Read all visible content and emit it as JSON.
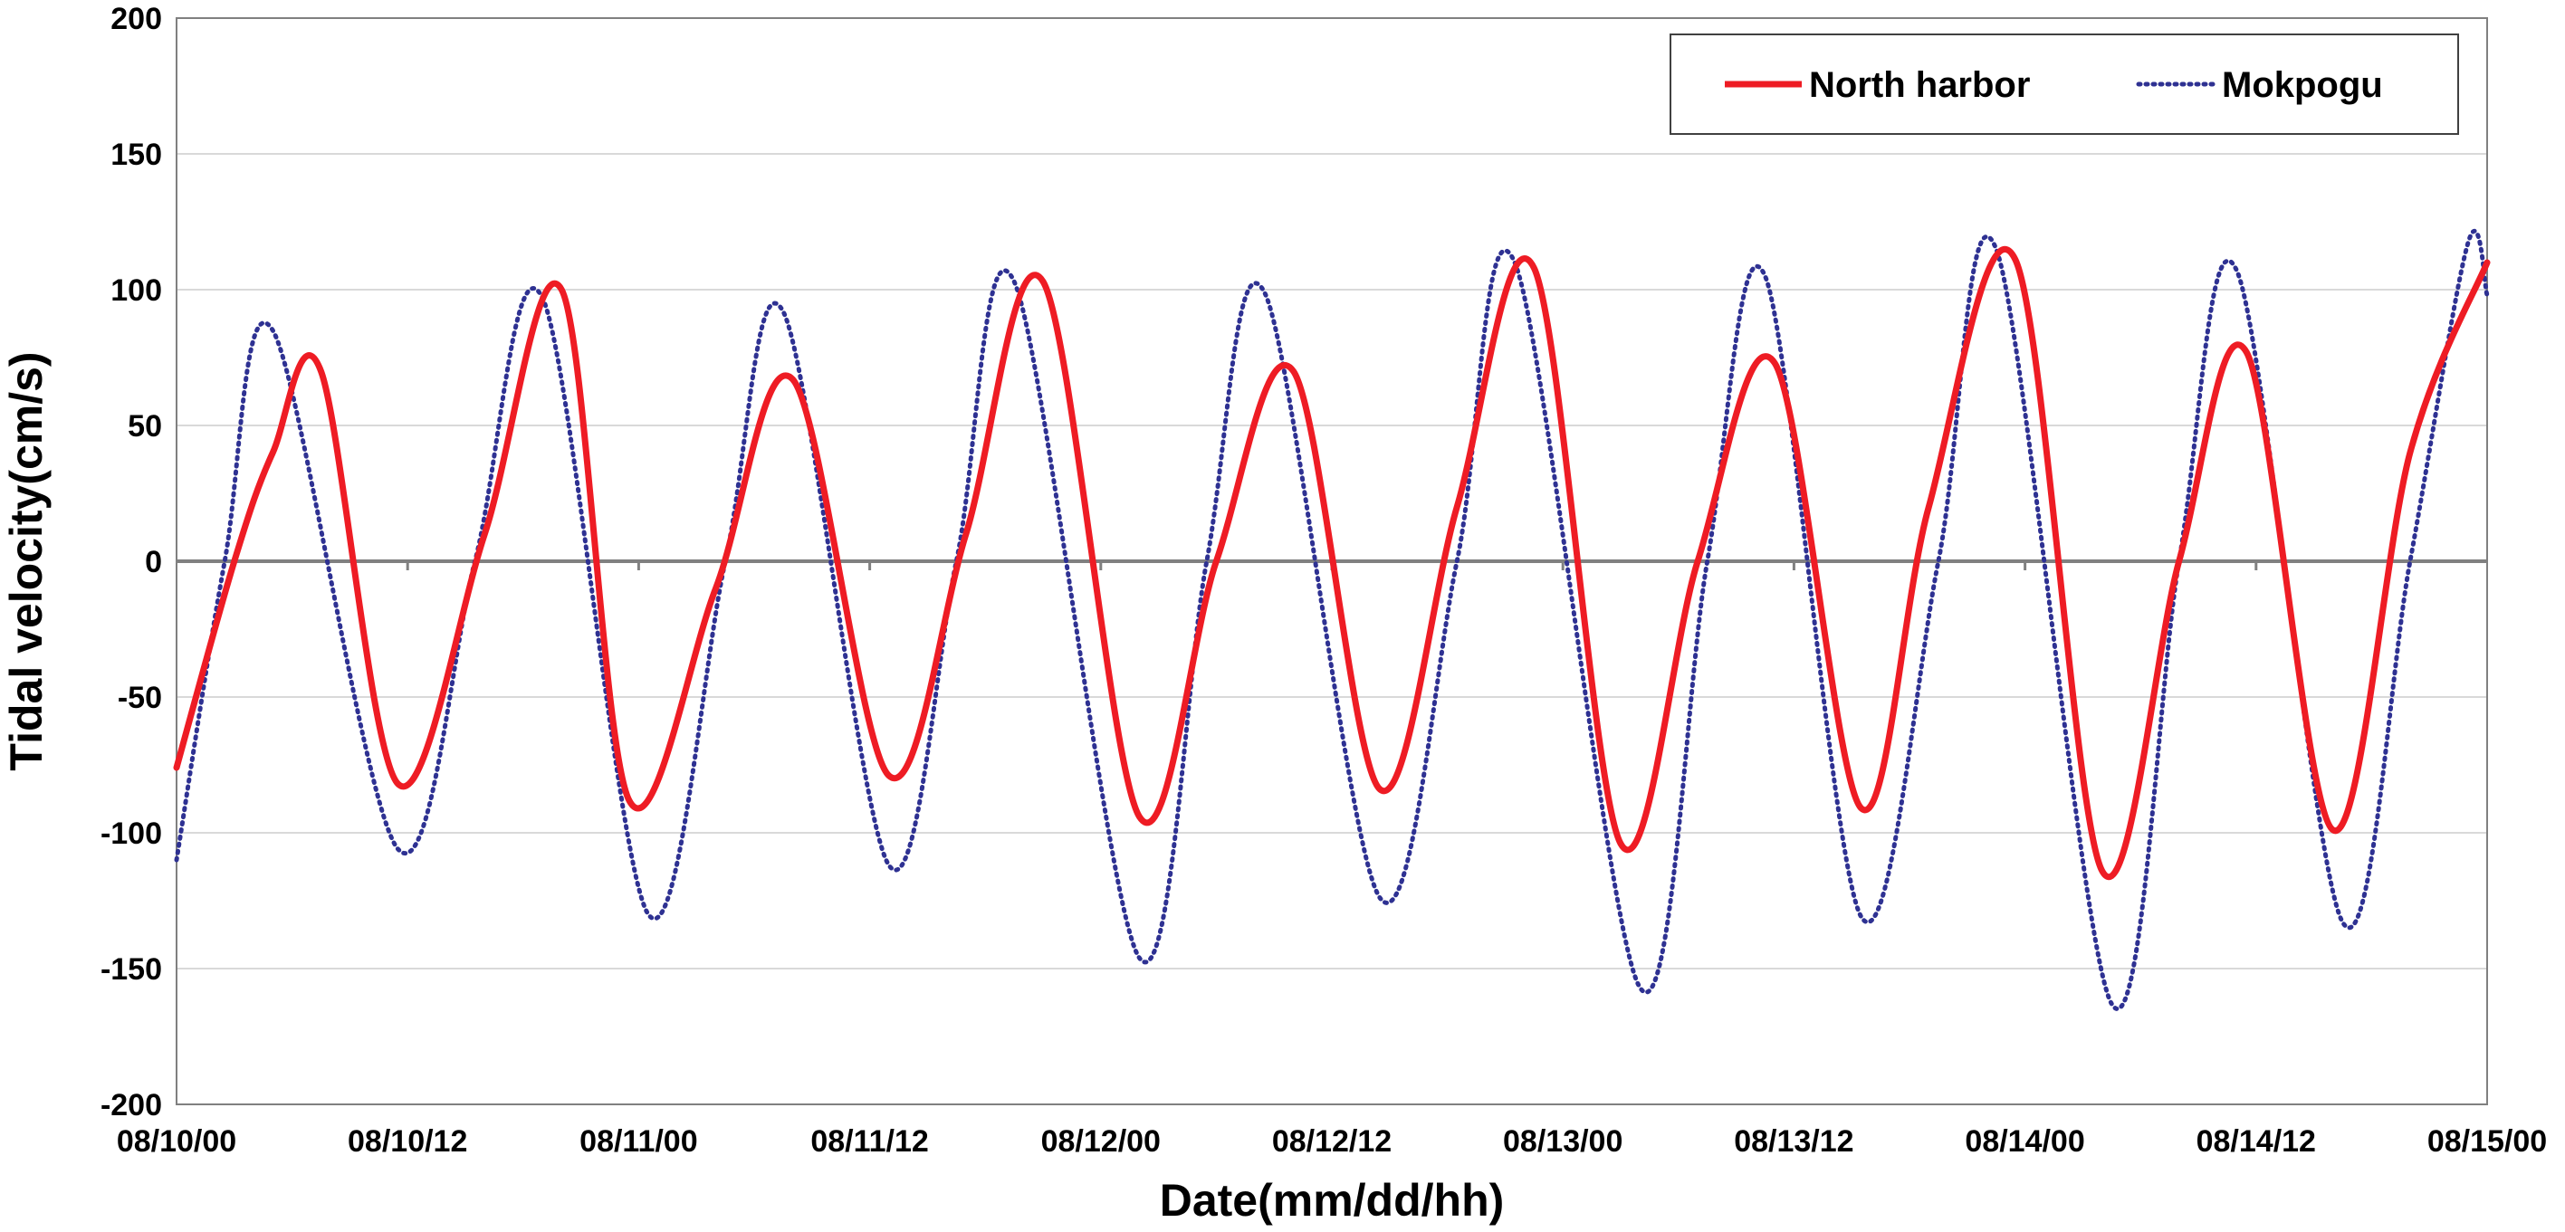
{
  "chart_data": {
    "type": "line",
    "title": "",
    "xlabel": "Date(mm/dd/hh)",
    "ylabel": "Tidal velocity(cm/s)",
    "ylim": [
      -200,
      200
    ],
    "yticks": [
      200,
      150,
      100,
      50,
      0,
      -50,
      -100,
      -150,
      -200
    ],
    "x_range_hours": [
      0,
      120
    ],
    "xtick_labels": [
      "08/10/00",
      "08/10/12",
      "08/11/00",
      "08/11/12",
      "08/12/00",
      "08/12/12",
      "08/13/00",
      "08/13/12",
      "08/14/00",
      "08/14/12",
      "08/15/00"
    ],
    "grid": "horizontal",
    "legend": "top-right",
    "series": [
      {
        "name": "North harbor",
        "color": "#ee1c24",
        "style": "solid",
        "points": [
          [
            0,
            -76
          ],
          [
            3,
            0
          ],
          [
            5,
            40
          ],
          [
            7.5,
            70
          ],
          [
            11.5,
            -82
          ],
          [
            16,
            10
          ],
          [
            20,
            100
          ],
          [
            23.5,
            -88
          ],
          [
            28,
            -10
          ],
          [
            32,
            67
          ],
          [
            37,
            -79
          ],
          [
            41,
            10
          ],
          [
            45,
            103
          ],
          [
            50,
            -94
          ],
          [
            54,
            0
          ],
          [
            58,
            70
          ],
          [
            62.5,
            -84
          ],
          [
            66.5,
            20
          ],
          [
            70.5,
            108
          ],
          [
            75,
            -104
          ],
          [
            79,
            0
          ],
          [
            83,
            73
          ],
          [
            87.5,
            -91
          ],
          [
            91,
            20
          ],
          [
            95.5,
            111
          ],
          [
            100,
            -114
          ],
          [
            104,
            0
          ],
          [
            107.5,
            77
          ],
          [
            112,
            -99
          ],
          [
            116,
            40
          ],
          [
            120,
            110
          ]
        ]
      },
      {
        "name": "Mokpogu",
        "color": "#2e3192",
        "style": "dotted",
        "points": [
          [
            0,
            -110
          ],
          [
            2.5,
            0
          ],
          [
            5,
            85
          ],
          [
            11.5,
            -106
          ],
          [
            15.5,
            0
          ],
          [
            19,
            97
          ],
          [
            24.5,
            -130
          ],
          [
            28.5,
            0
          ],
          [
            31.5,
            92
          ],
          [
            37,
            -112
          ],
          [
            40.5,
            0
          ],
          [
            43.5,
            103
          ],
          [
            50,
            -146
          ],
          [
            53.5,
            0
          ],
          [
            56.5,
            99
          ],
          [
            62.5,
            -124
          ],
          [
            66.5,
            0
          ],
          [
            69.5,
            110
          ],
          [
            76,
            -157
          ],
          [
            79.5,
            0
          ],
          [
            82.5,
            105
          ],
          [
            87.5,
            -131
          ],
          [
            91.5,
            0
          ],
          [
            94.5,
            115
          ],
          [
            100.5,
            -163
          ],
          [
            104,
            0
          ],
          [
            107,
            107
          ],
          [
            112.5,
            -133
          ],
          [
            116,
            0
          ],
          [
            119,
            117
          ],
          [
            120,
            98
          ]
        ]
      }
    ]
  }
}
